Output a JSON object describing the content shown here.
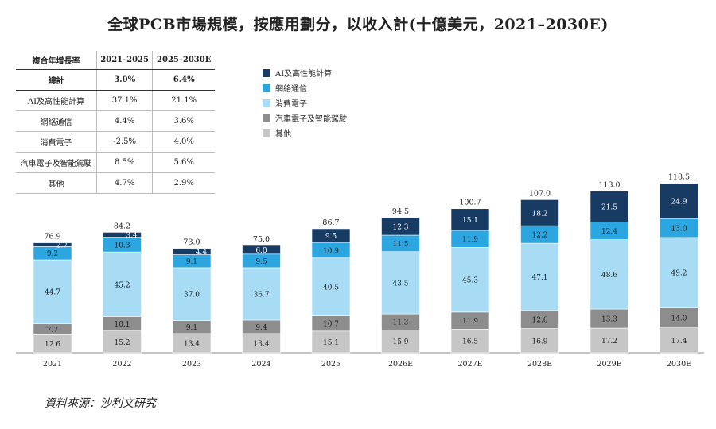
{
  "title": "全球PCB市場規模，按應用劃分，以收入計(十億美元，2021–2030E)",
  "source": "資料來源：沙利文研究",
  "cagr_table": {
    "headers": [
      "複合年增長率",
      "2021–2025",
      "2025–2030E"
    ],
    "rows": [
      {
        "label": "總計",
        "a": "3.0%",
        "b": "6.4%",
        "bold": true
      },
      {
        "label": "AI及高性能計算",
        "a": "37.1%",
        "b": "21.1%"
      },
      {
        "label": "網絡通信",
        "a": "4.4%",
        "b": "3.6%"
      },
      {
        "label": "消費電子",
        "a": "-2.5%",
        "b": "4.0%"
      },
      {
        "label": "汽車電子及智能駕駛",
        "a": "8.5%",
        "b": "5.6%"
      },
      {
        "label": "其他",
        "a": "4.7%",
        "b": "2.9%"
      }
    ]
  },
  "chart_data": {
    "type": "bar",
    "stacked": true,
    "categories": [
      "2021",
      "2022",
      "2023",
      "2024",
      "2025",
      "2026E",
      "2027E",
      "2028E",
      "2029E",
      "2030E"
    ],
    "series": [
      {
        "name": "其他",
        "color": "#c6c6c6",
        "values": [
          12.6,
          15.2,
          13.4,
          13.4,
          15.1,
          15.9,
          16.5,
          16.9,
          17.2,
          17.4
        ]
      },
      {
        "name": "汽車電子及智能駕駛",
        "color": "#8d8d8d",
        "values": [
          7.7,
          10.1,
          9.1,
          9.4,
          10.7,
          11.3,
          11.9,
          12.6,
          13.3,
          14.0
        ]
      },
      {
        "name": "消費電子",
        "color": "#a8dcf4",
        "values": [
          44.7,
          45.2,
          37.0,
          36.7,
          40.5,
          43.5,
          45.3,
          47.1,
          48.6,
          49.2
        ]
      },
      {
        "name": "網絡通信",
        "color": "#2ba6e0",
        "values": [
          9.2,
          10.3,
          9.1,
          9.5,
          10.9,
          11.5,
          11.9,
          12.2,
          12.4,
          13.0
        ]
      },
      {
        "name": "AI及高性能計算",
        "color": "#173b62",
        "values": [
          2.7,
          3.4,
          4.4,
          6.0,
          9.5,
          12.3,
          15.1,
          18.2,
          21.5,
          24.9
        ]
      }
    ],
    "totals": [
      "76.9",
      "84.2",
      "73.0",
      "75.0",
      "86.7",
      "94.5",
      "100.7",
      "107.0",
      "113.0",
      "118.5"
    ],
    "legend_order": [
      "AI及高性能計算",
      "網絡通信",
      "消費電子",
      "汽車電子及智能駕駛",
      "其他"
    ],
    "legend_position": "top-center",
    "grid": false,
    "ylim": [
      0,
      120
    ]
  }
}
